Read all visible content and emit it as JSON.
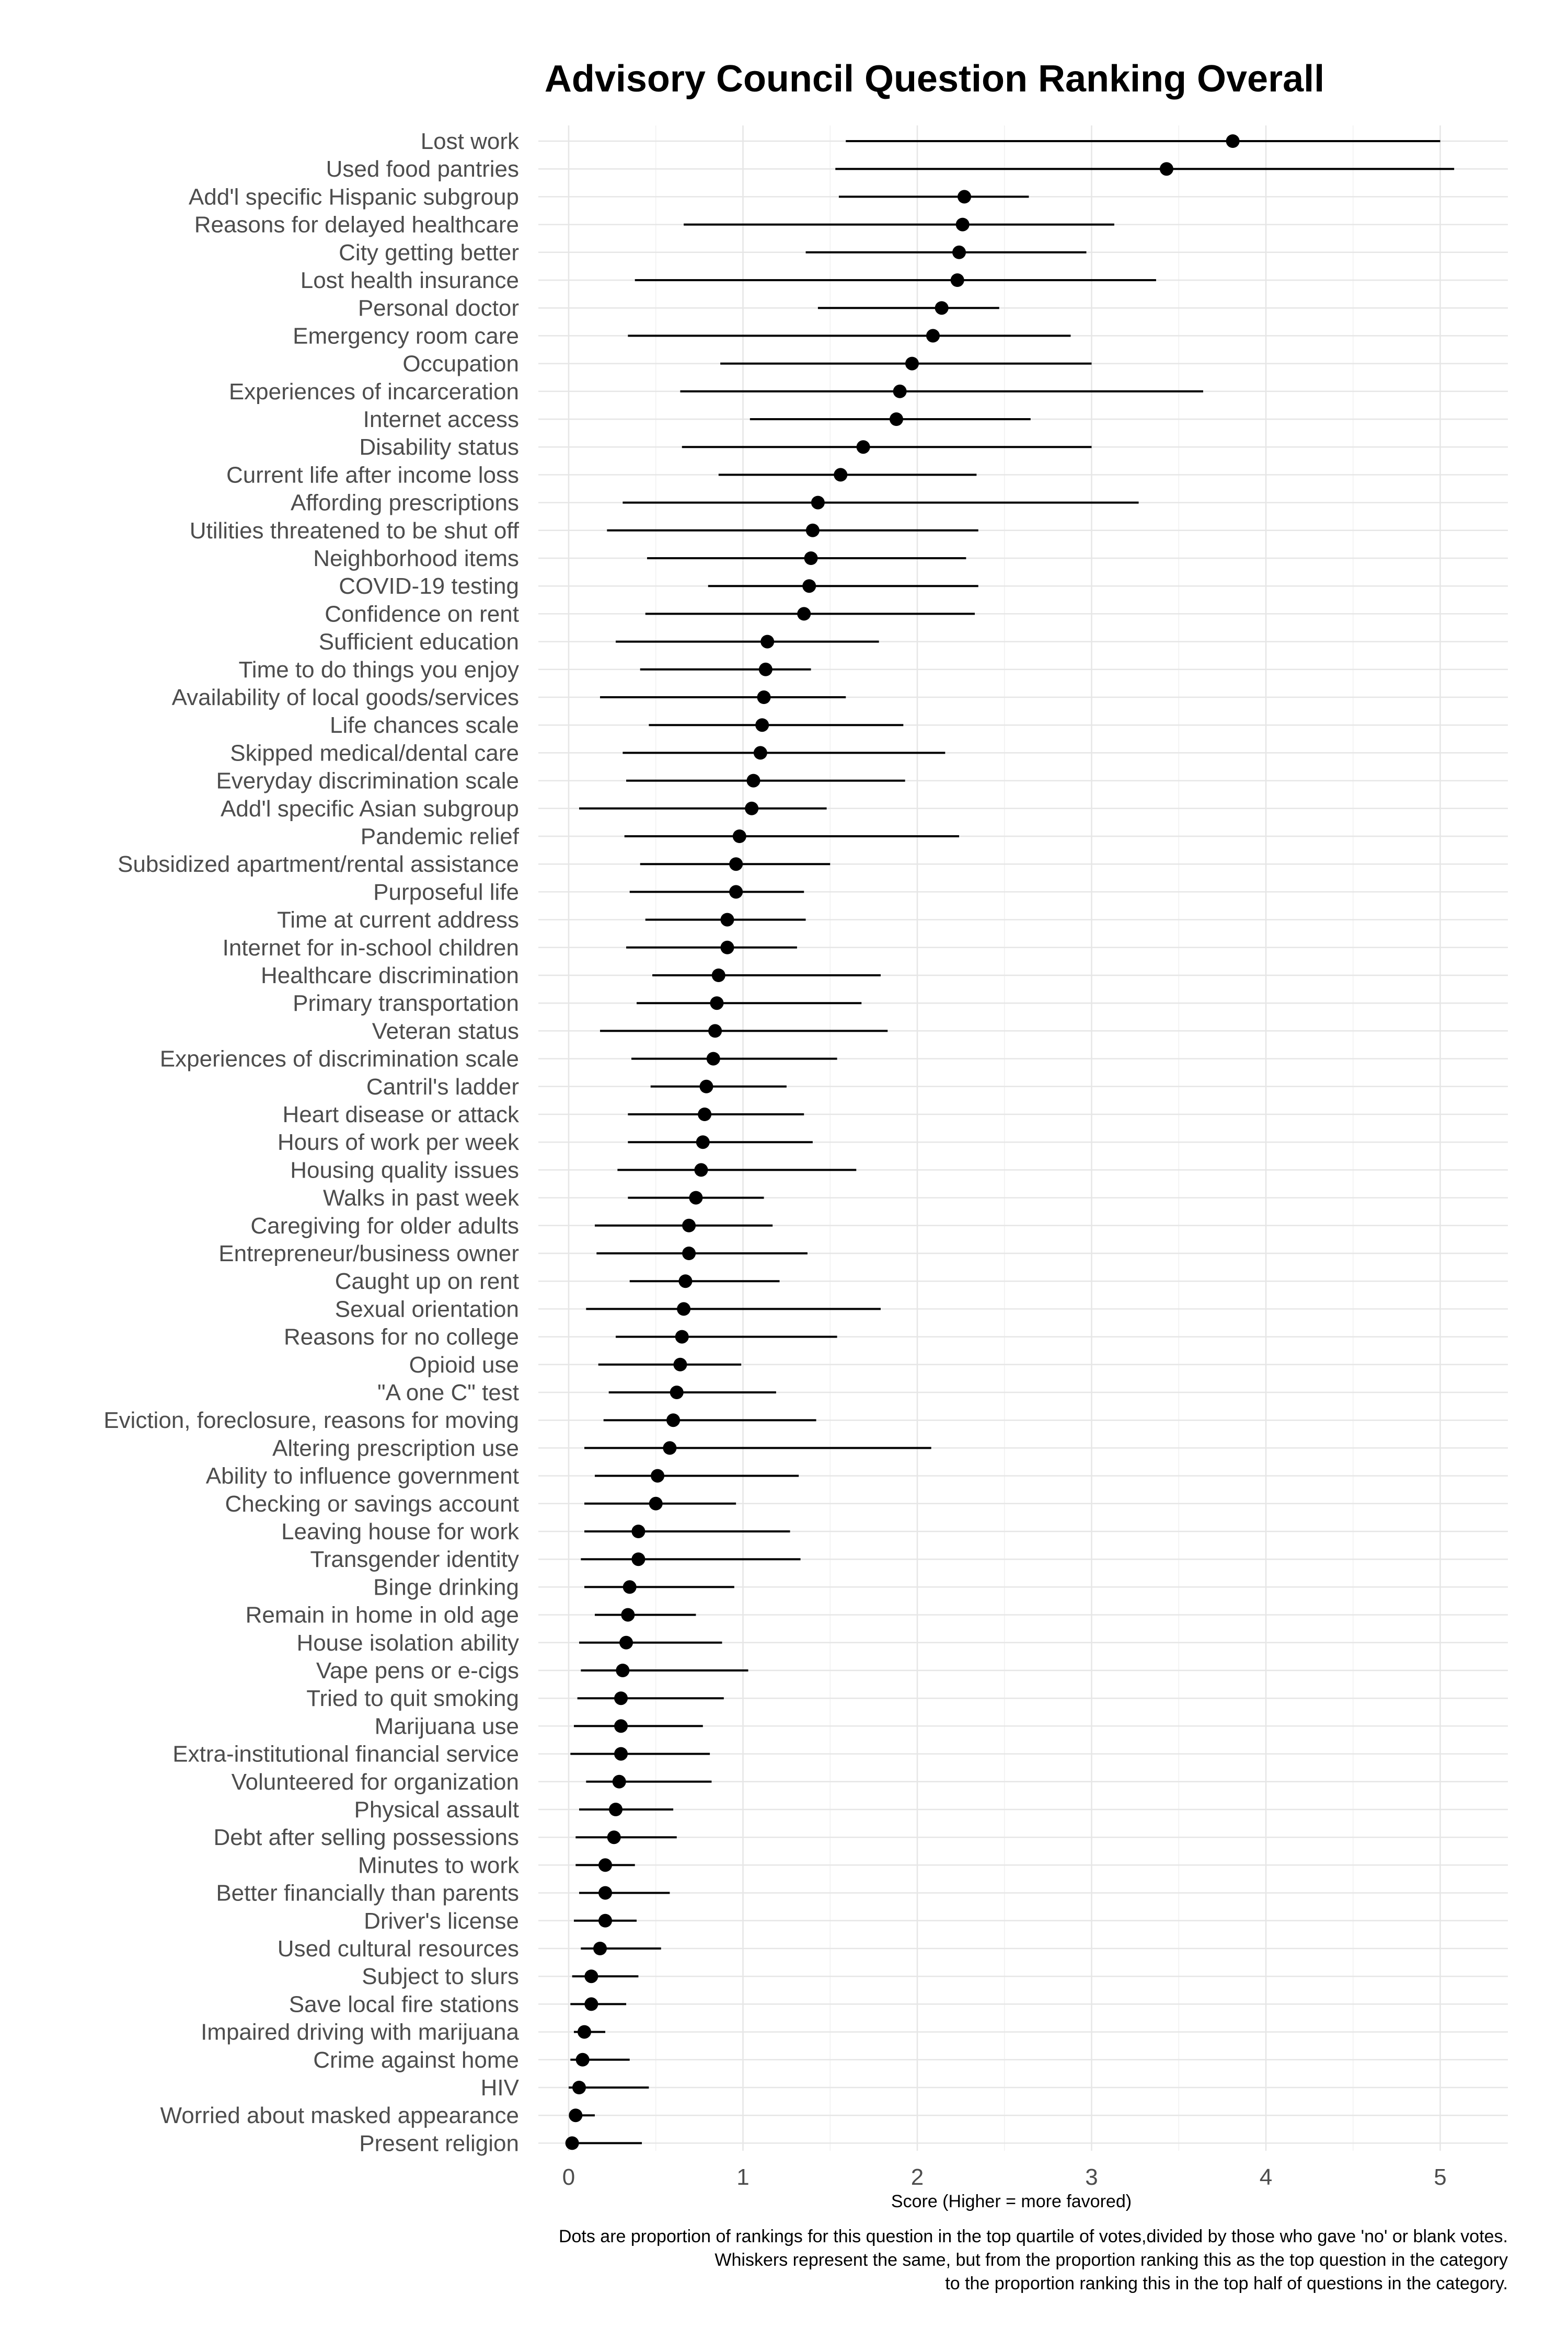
{
  "chart_data": {
    "type": "scatter",
    "title": "Advisory Council Question Ranking Overall",
    "xlabel": "Score (Higher = more favored)",
    "ylabel": "",
    "xlim": [
      -0.1,
      5.35
    ],
    "xticks": [
      0,
      1,
      2,
      3,
      4,
      5
    ],
    "grid": true,
    "caption": [
      "Dots are proportion of rankings for this question in the top quartile of votes,divided by those who gave 'no' or blank votes.",
      "Whiskers represent the same, but from the proportion ranking this as the top question in the category",
      "to the proportion ranking this in the top half of questions in the category."
    ],
    "points": [
      {
        "label": "Lost work",
        "value": 3.81,
        "low": 1.59,
        "high": 5.0
      },
      {
        "label": "Used food pantries",
        "value": 3.43,
        "low": 1.53,
        "high": 5.08
      },
      {
        "label": "Add'l specific Hispanic subgroup",
        "value": 2.27,
        "low": 1.55,
        "high": 2.64
      },
      {
        "label": "Reasons for delayed healthcare",
        "value": 2.26,
        "low": 0.66,
        "high": 3.13
      },
      {
        "label": "City getting better",
        "value": 2.24,
        "low": 1.36,
        "high": 2.97
      },
      {
        "label": "Lost health insurance",
        "value": 2.23,
        "low": 0.38,
        "high": 3.37
      },
      {
        "label": "Personal doctor",
        "value": 2.14,
        "low": 1.43,
        "high": 2.47
      },
      {
        "label": "Emergency room care",
        "value": 2.09,
        "low": 0.34,
        "high": 2.88
      },
      {
        "label": "Occupation",
        "value": 1.97,
        "low": 0.87,
        "high": 3.0
      },
      {
        "label": "Experiences of incarceration",
        "value": 1.9,
        "low": 0.64,
        "high": 3.64
      },
      {
        "label": "Internet access",
        "value": 1.88,
        "low": 1.04,
        "high": 2.65
      },
      {
        "label": "Disability status",
        "value": 1.69,
        "low": 0.65,
        "high": 3.0
      },
      {
        "label": "Current life after income loss",
        "value": 1.56,
        "low": 0.86,
        "high": 2.34
      },
      {
        "label": "Affording prescriptions",
        "value": 1.43,
        "low": 0.31,
        "high": 3.27
      },
      {
        "label": "Utilities threatened to be shut off",
        "value": 1.4,
        "low": 0.22,
        "high": 2.35
      },
      {
        "label": "Neighborhood items",
        "value": 1.39,
        "low": 0.45,
        "high": 2.28
      },
      {
        "label": "COVID-19 testing",
        "value": 1.38,
        "low": 0.8,
        "high": 2.35
      },
      {
        "label": "Confidence on rent",
        "value": 1.35,
        "low": 0.44,
        "high": 2.33
      },
      {
        "label": "Sufficient education",
        "value": 1.14,
        "low": 0.27,
        "high": 1.78
      },
      {
        "label": "Time to do things you enjoy",
        "value": 1.13,
        "low": 0.41,
        "high": 1.39
      },
      {
        "label": "Availability of local goods/services",
        "value": 1.12,
        "low": 0.18,
        "high": 1.59
      },
      {
        "label": "Life chances scale",
        "value": 1.11,
        "low": 0.46,
        "high": 1.92
      },
      {
        "label": "Skipped medical/dental care",
        "value": 1.1,
        "low": 0.31,
        "high": 2.16
      },
      {
        "label": "Everyday discrimination scale",
        "value": 1.06,
        "low": 0.33,
        "high": 1.93
      },
      {
        "label": "Add'l specific Asian subgroup",
        "value": 1.05,
        "low": 0.06,
        "high": 1.48
      },
      {
        "label": "Pandemic relief",
        "value": 0.98,
        "low": 0.32,
        "high": 2.24
      },
      {
        "label": "Subsidized apartment/rental assistance",
        "value": 0.96,
        "low": 0.41,
        "high": 1.5
      },
      {
        "label": "Purposeful life",
        "value": 0.96,
        "low": 0.35,
        "high": 1.35
      },
      {
        "label": "Time at current address",
        "value": 0.91,
        "low": 0.44,
        "high": 1.36
      },
      {
        "label": "Internet for in-school children",
        "value": 0.91,
        "low": 0.33,
        "high": 1.31
      },
      {
        "label": "Healthcare discrimination",
        "value": 0.86,
        "low": 0.48,
        "high": 1.79
      },
      {
        "label": "Primary transportation",
        "value": 0.85,
        "low": 0.39,
        "high": 1.68
      },
      {
        "label": "Veteran status",
        "value": 0.84,
        "low": 0.18,
        "high": 1.83
      },
      {
        "label": "Experiences of discrimination scale",
        "value": 0.83,
        "low": 0.36,
        "high": 1.54
      },
      {
        "label": "Cantril's ladder",
        "value": 0.79,
        "low": 0.47,
        "high": 1.25
      },
      {
        "label": "Heart disease or attack",
        "value": 0.78,
        "low": 0.34,
        "high": 1.35
      },
      {
        "label": "Hours of work per week",
        "value": 0.77,
        "low": 0.34,
        "high": 1.4
      },
      {
        "label": "Housing quality issues",
        "value": 0.76,
        "low": 0.28,
        "high": 1.65
      },
      {
        "label": "Walks in past week",
        "value": 0.73,
        "low": 0.34,
        "high": 1.12
      },
      {
        "label": "Caregiving for older adults",
        "value": 0.69,
        "low": 0.15,
        "high": 1.17
      },
      {
        "label": "Entrepreneur/business owner",
        "value": 0.69,
        "low": 0.16,
        "high": 1.37
      },
      {
        "label": "Caught up on rent",
        "value": 0.67,
        "low": 0.35,
        "high": 1.21
      },
      {
        "label": "Sexual orientation",
        "value": 0.66,
        "low": 0.1,
        "high": 1.79
      },
      {
        "label": "Reasons for no college",
        "value": 0.65,
        "low": 0.27,
        "high": 1.54
      },
      {
        "label": "Opioid use",
        "value": 0.64,
        "low": 0.17,
        "high": 0.99
      },
      {
        "label": "\"A one C\" test",
        "value": 0.62,
        "low": 0.23,
        "high": 1.19
      },
      {
        "label": "Eviction, foreclosure, reasons for moving",
        "value": 0.6,
        "low": 0.2,
        "high": 1.42
      },
      {
        "label": "Altering prescription use",
        "value": 0.58,
        "low": 0.09,
        "high": 2.08
      },
      {
        "label": "Ability to influence government",
        "value": 0.51,
        "low": 0.15,
        "high": 1.32
      },
      {
        "label": "Checking or savings account",
        "value": 0.5,
        "low": 0.09,
        "high": 0.96
      },
      {
        "label": "Leaving house for work",
        "value": 0.4,
        "low": 0.09,
        "high": 1.27
      },
      {
        "label": "Transgender identity",
        "value": 0.4,
        "low": 0.07,
        "high": 1.33
      },
      {
        "label": "Binge drinking",
        "value": 0.35,
        "low": 0.09,
        "high": 0.95
      },
      {
        "label": "Remain in home in old age",
        "value": 0.34,
        "low": 0.15,
        "high": 0.73
      },
      {
        "label": "House isolation ability",
        "value": 0.33,
        "low": 0.06,
        "high": 0.88
      },
      {
        "label": "Vape pens or e-cigs",
        "value": 0.31,
        "low": 0.07,
        "high": 1.03
      },
      {
        "label": "Tried to quit smoking",
        "value": 0.3,
        "low": 0.05,
        "high": 0.89
      },
      {
        "label": "Marijuana use",
        "value": 0.3,
        "low": 0.03,
        "high": 0.77
      },
      {
        "label": "Extra-institutional financial service",
        "value": 0.3,
        "low": 0.01,
        "high": 0.81
      },
      {
        "label": "Volunteered for organization",
        "value": 0.29,
        "low": 0.1,
        "high": 0.82
      },
      {
        "label": "Physical assault",
        "value": 0.27,
        "low": 0.06,
        "high": 0.6
      },
      {
        "label": "Debt after selling possessions",
        "value": 0.26,
        "low": 0.04,
        "high": 0.62
      },
      {
        "label": "Minutes to work",
        "value": 0.21,
        "low": 0.04,
        "high": 0.38
      },
      {
        "label": "Better financially than parents",
        "value": 0.21,
        "low": 0.06,
        "high": 0.58
      },
      {
        "label": "Driver's license",
        "value": 0.21,
        "low": 0.03,
        "high": 0.39
      },
      {
        "label": "Used cultural resources",
        "value": 0.18,
        "low": 0.07,
        "high": 0.53
      },
      {
        "label": "Subject to slurs",
        "value": 0.13,
        "low": 0.02,
        "high": 0.4
      },
      {
        "label": "Save local fire stations",
        "value": 0.13,
        "low": 0.01,
        "high": 0.33
      },
      {
        "label": "Impaired driving with marijuana",
        "value": 0.09,
        "low": 0.03,
        "high": 0.21
      },
      {
        "label": "Crime against home",
        "value": 0.08,
        "low": 0.01,
        "high": 0.35
      },
      {
        "label": "HIV",
        "value": 0.06,
        "low": 0.0,
        "high": 0.46
      },
      {
        "label": "Worried about masked appearance",
        "value": 0.04,
        "low": 0.01,
        "high": 0.15
      },
      {
        "label": "Present religion",
        "value": 0.02,
        "low": 0.0,
        "high": 0.42
      }
    ]
  }
}
